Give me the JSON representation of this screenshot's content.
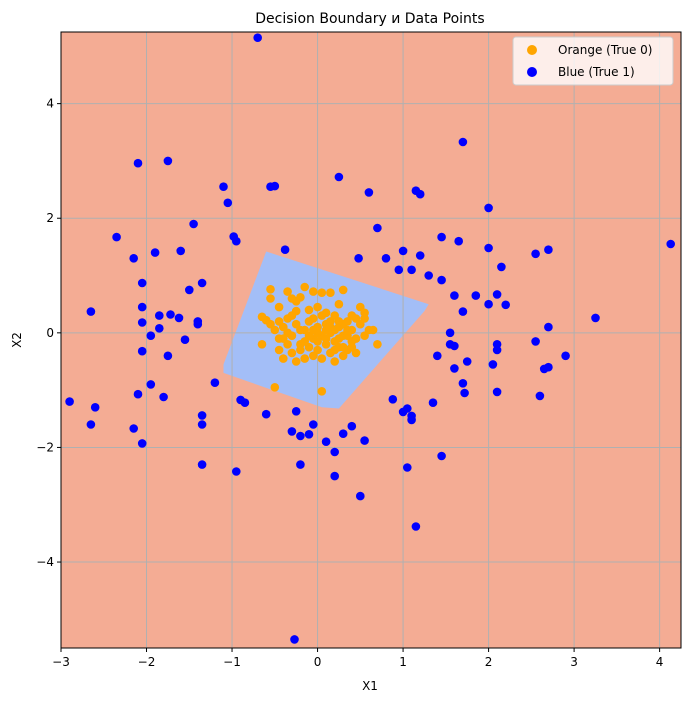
{
  "chart_data": {
    "type": "scatter",
    "title": "Decision Boundary и Data Points",
    "xlabel": "X1",
    "ylabel": "X2",
    "xlim": [
      -3.0,
      4.25
    ],
    "ylim": [
      -5.5,
      5.25
    ],
    "xticks": [
      -3,
      -2,
      -1,
      0,
      1,
      2,
      3,
      4
    ],
    "yticks": [
      -4,
      -2,
      0,
      2,
      4
    ],
    "xtick_labels": [
      "−3",
      "−2",
      "−1",
      "0",
      "1",
      "2",
      "3",
      "4"
    ],
    "ytick_labels": [
      "−4",
      "−2",
      "0",
      "2",
      "4"
    ],
    "grid": true,
    "legend_position": "top-right",
    "background_region": {
      "label": "class 1 region",
      "color": "#f4ac94"
    },
    "decision_region": {
      "label": "class 0 region",
      "color": "#a3bef7",
      "polygon": [
        [
          -0.6,
          1.42
        ],
        [
          1.3,
          0.5
        ],
        [
          1.25,
          0.38
        ],
        [
          0.25,
          -1.32
        ],
        [
          0.05,
          -1.3
        ],
        [
          -1.1,
          -0.7
        ],
        [
          -1.1,
          -0.55
        ]
      ]
    },
    "series": [
      {
        "name": "Orange (True 0)",
        "color": "#ffa500",
        "points": [
          [
            -0.55,
            0.76
          ],
          [
            -0.55,
            0.6
          ],
          [
            -0.45,
            0.45
          ],
          [
            -0.35,
            0.72
          ],
          [
            -0.3,
            0.6
          ],
          [
            -0.25,
            0.55
          ],
          [
            -0.2,
            0.62
          ],
          [
            -0.15,
            0.8
          ],
          [
            -0.05,
            0.72
          ],
          [
            0.05,
            0.7
          ],
          [
            0.15,
            0.7
          ],
          [
            0.25,
            0.5
          ],
          [
            0.3,
            0.75
          ],
          [
            0.5,
            0.45
          ],
          [
            0.55,
            0.35
          ],
          [
            -0.6,
            0.22
          ],
          [
            -0.55,
            0.15
          ],
          [
            -0.5,
            0.05
          ],
          [
            -0.45,
            -0.1
          ],
          [
            -0.4,
            0.1
          ],
          [
            -0.35,
            0.25
          ],
          [
            -0.3,
            -0.05
          ],
          [
            -0.25,
            0.15
          ],
          [
            -0.2,
            -0.2
          ],
          [
            -0.15,
            0.05
          ],
          [
            -0.1,
            0.2
          ],
          [
            -0.05,
            -0.1
          ],
          [
            0.0,
            0.1
          ],
          [
            0.05,
            -0.05
          ],
          [
            0.1,
            0.15
          ],
          [
            0.15,
            0.0
          ],
          [
            0.2,
            -0.15
          ],
          [
            0.25,
            0.1
          ],
          [
            0.3,
            -0.05
          ],
          [
            0.35,
            0.2
          ],
          [
            0.4,
            0.05
          ],
          [
            0.45,
            -0.1
          ],
          [
            0.5,
            0.15
          ],
          [
            0.55,
            -0.05
          ],
          [
            0.6,
            0.05
          ],
          [
            -0.45,
            -0.3
          ],
          [
            -0.4,
            -0.45
          ],
          [
            -0.35,
            -0.2
          ],
          [
            -0.3,
            -0.35
          ],
          [
            -0.25,
            -0.5
          ],
          [
            -0.2,
            -0.3
          ],
          [
            -0.15,
            -0.45
          ],
          [
            -0.1,
            -0.25
          ],
          [
            -0.05,
            -0.4
          ],
          [
            0.0,
            -0.3
          ],
          [
            0.05,
            -0.45
          ],
          [
            0.1,
            -0.2
          ],
          [
            0.15,
            -0.35
          ],
          [
            0.2,
            -0.5
          ],
          [
            0.25,
            -0.25
          ],
          [
            0.3,
            -0.4
          ],
          [
            0.35,
            -0.3
          ],
          [
            0.4,
            -0.15
          ],
          [
            0.45,
            -0.35
          ],
          [
            -0.5,
            -0.95
          ],
          [
            0.05,
            -1.02
          ],
          [
            0.7,
            -0.2
          ],
          [
            0.65,
            0.05
          ],
          [
            -0.65,
            0.28
          ],
          [
            -0.65,
            -0.2
          ],
          [
            -0.1,
            0.4
          ],
          [
            0.0,
            0.45
          ],
          [
            0.1,
            0.35
          ],
          [
            0.2,
            0.3
          ],
          [
            -0.25,
            0.38
          ],
          [
            0.4,
            0.3
          ],
          [
            0.35,
            -0.05
          ],
          [
            -0.05,
            0.25
          ],
          [
            0.05,
            0.3
          ],
          [
            0.15,
            0.2
          ],
          [
            0.25,
            -0.1
          ],
          [
            -0.35,
            0.0
          ],
          [
            -0.2,
            0.05
          ],
          [
            0.1,
            -0.1
          ],
          [
            0.2,
            0.05
          ],
          [
            0.3,
            0.15
          ],
          [
            0.45,
            0.25
          ],
          [
            0.55,
            0.25
          ],
          [
            -0.4,
            -0.1
          ],
          [
            -0.1,
            -0.05
          ],
          [
            0.0,
            -0.15
          ],
          [
            0.1,
            0.05
          ],
          [
            0.2,
            -0.3
          ],
          [
            0.3,
            -0.25
          ],
          [
            0.4,
            -0.25
          ],
          [
            -0.3,
            0.3
          ],
          [
            -0.15,
            -0.15
          ],
          [
            0.0,
            0.0
          ],
          [
            0.15,
            0.1
          ],
          [
            0.35,
            0.05
          ],
          [
            -0.45,
            0.2
          ],
          [
            -0.05,
            0.05
          ],
          [
            0.25,
            0.2
          ]
        ]
      },
      {
        "name": "Blue (True 1)",
        "color": "#0000ff",
        "points": [
          [
            -0.7,
            5.15
          ],
          [
            -0.27,
            -5.35
          ],
          [
            4.13,
            1.55
          ],
          [
            1.7,
            3.33
          ],
          [
            -2.1,
            2.96
          ],
          [
            -1.75,
            3.0
          ],
          [
            -1.1,
            2.55
          ],
          [
            -1.05,
            2.27
          ],
          [
            -0.55,
            2.55
          ],
          [
            -0.5,
            2.56
          ],
          [
            0.25,
            2.72
          ],
          [
            0.6,
            2.45
          ],
          [
            1.15,
            2.48
          ],
          [
            1.2,
            2.42
          ],
          [
            2.0,
            2.18
          ],
          [
            -1.45,
            1.9
          ],
          [
            -0.98,
            1.68
          ],
          [
            -0.95,
            1.6
          ],
          [
            -2.35,
            1.67
          ],
          [
            -2.15,
            1.3
          ],
          [
            -1.9,
            1.4
          ],
          [
            -1.6,
            1.43
          ],
          [
            -0.38,
            1.45
          ],
          [
            0.7,
            1.83
          ],
          [
            0.95,
            1.1
          ],
          [
            0.48,
            1.3
          ],
          [
            0.8,
            1.3
          ],
          [
            1.0,
            1.43
          ],
          [
            1.2,
            1.35
          ],
          [
            1.3,
            1.0
          ],
          [
            1.45,
            1.67
          ],
          [
            1.65,
            1.6
          ],
          [
            2.0,
            1.48
          ],
          [
            2.15,
            1.15
          ],
          [
            2.55,
            1.38
          ],
          [
            2.7,
            1.45
          ],
          [
            -2.05,
            0.87
          ],
          [
            -2.05,
            0.45
          ],
          [
            -2.05,
            0.18
          ],
          [
            -1.85,
            0.3
          ],
          [
            -1.85,
            0.08
          ],
          [
            -1.72,
            0.32
          ],
          [
            -1.62,
            0.26
          ],
          [
            -1.5,
            0.75
          ],
          [
            -1.4,
            0.2
          ],
          [
            -1.35,
            0.87
          ],
          [
            -1.4,
            0.15
          ],
          [
            -1.55,
            -0.12
          ],
          [
            -1.75,
            -0.4
          ],
          [
            -1.95,
            -0.05
          ],
          [
            -2.05,
            -0.32
          ],
          [
            -2.65,
            0.37
          ],
          [
            1.1,
            1.1
          ],
          [
            1.45,
            0.92
          ],
          [
            1.6,
            0.65
          ],
          [
            1.7,
            0.37
          ],
          [
            1.85,
            0.65
          ],
          [
            2.0,
            0.5
          ],
          [
            2.1,
            0.67
          ],
          [
            2.2,
            0.49
          ],
          [
            2.55,
            -0.15
          ],
          [
            2.7,
            0.1
          ],
          [
            2.7,
            -0.6
          ],
          [
            2.9,
            -0.4
          ],
          [
            3.25,
            0.26
          ],
          [
            1.55,
            0.0
          ],
          [
            1.55,
            -0.2
          ],
          [
            1.6,
            -0.23
          ],
          [
            1.4,
            -0.4
          ],
          [
            1.6,
            -0.62
          ],
          [
            1.75,
            -0.5
          ],
          [
            1.7,
            -0.88
          ],
          [
            1.72,
            -1.05
          ],
          [
            2.05,
            -0.55
          ],
          [
            2.1,
            -0.2
          ],
          [
            2.1,
            -0.3
          ],
          [
            2.1,
            -1.03
          ],
          [
            2.6,
            -1.1
          ],
          [
            2.65,
            -0.63
          ],
          [
            -1.95,
            -0.9
          ],
          [
            -2.1,
            -1.07
          ],
          [
            -1.8,
            -1.12
          ],
          [
            -1.2,
            -0.87
          ],
          [
            -0.9,
            -1.17
          ],
          [
            -0.85,
            -1.22
          ],
          [
            -0.6,
            -1.42
          ],
          [
            -0.25,
            -1.37
          ],
          [
            -1.35,
            -1.44
          ],
          [
            -1.35,
            -1.6
          ],
          [
            -2.15,
            -1.67
          ],
          [
            -2.05,
            -1.93
          ],
          [
            -2.65,
            -1.6
          ],
          [
            -2.6,
            -1.3
          ],
          [
            -2.9,
            -1.2
          ],
          [
            -1.35,
            -2.3
          ],
          [
            -0.95,
            -2.42
          ],
          [
            -0.3,
            -1.72
          ],
          [
            -0.2,
            -1.8
          ],
          [
            -0.1,
            -1.77
          ],
          [
            -0.05,
            -1.6
          ],
          [
            0.1,
            -1.9
          ],
          [
            0.2,
            -2.08
          ],
          [
            0.3,
            -1.76
          ],
          [
            0.4,
            -1.63
          ],
          [
            0.55,
            -1.88
          ],
          [
            0.88,
            -1.16
          ],
          [
            1.0,
            -1.38
          ],
          [
            1.05,
            -1.32
          ],
          [
            1.1,
            -1.45
          ],
          [
            1.1,
            -1.52
          ],
          [
            1.35,
            -1.22
          ],
          [
            1.05,
            -2.35
          ],
          [
            1.45,
            -2.15
          ],
          [
            0.2,
            -2.5
          ],
          [
            0.5,
            -2.85
          ],
          [
            -0.2,
            -2.3
          ],
          [
            1.15,
            -3.38
          ]
        ]
      }
    ]
  }
}
